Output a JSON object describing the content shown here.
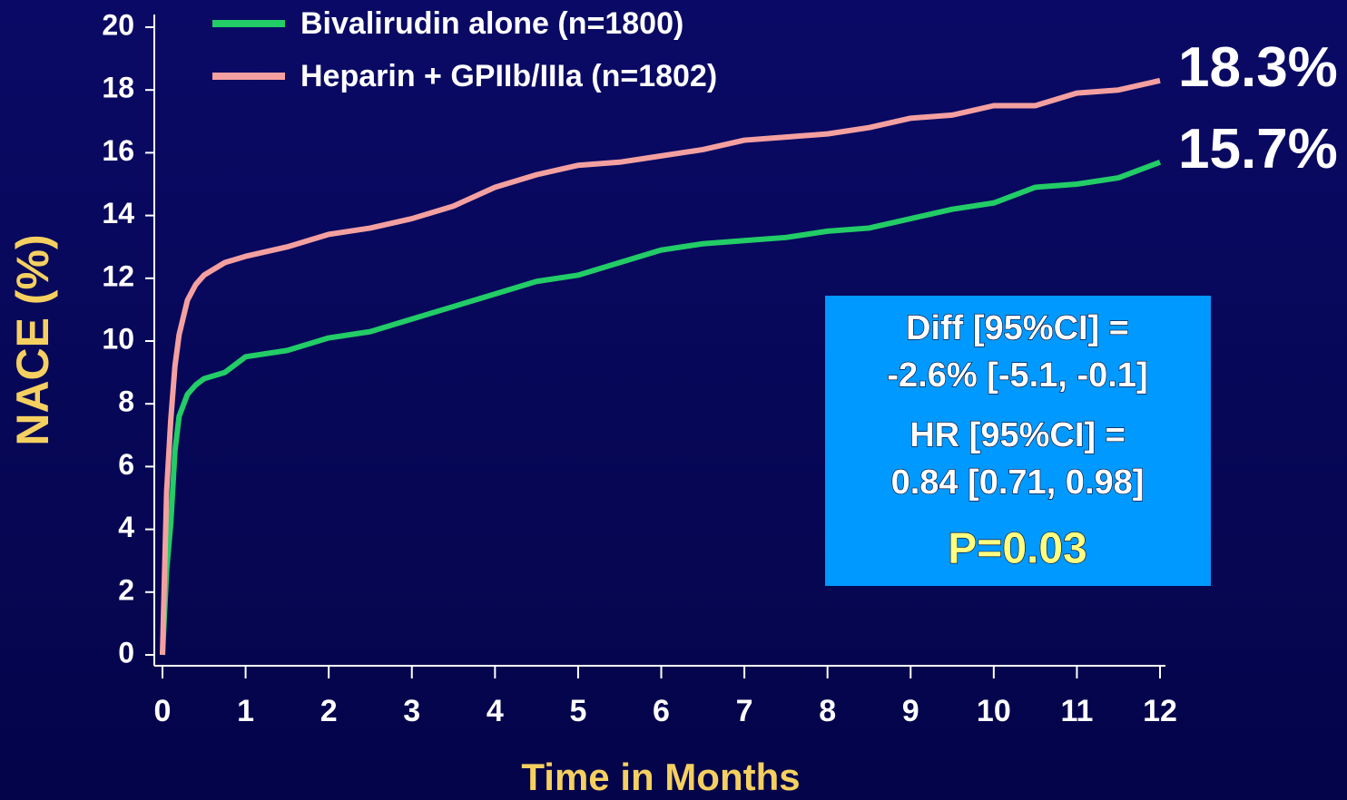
{
  "chart_data": {
    "type": "line",
    "y_label": "NACE (%)",
    "x_label": "Time in Months",
    "x": [
      0,
      0.05,
      0.1,
      0.15,
      0.2,
      0.3,
      0.4,
      0.5,
      0.75,
      1,
      1.5,
      2,
      2.5,
      3,
      3.5,
      4,
      4.5,
      5,
      5.5,
      6,
      6.5,
      7,
      7.5,
      8,
      8.5,
      9,
      9.5,
      10,
      10.5,
      11,
      11.5,
      12
    ],
    "series": [
      {
        "name": "Bivalirudin alone (n=1800)",
        "color": "#22cc66",
        "values": [
          0,
          2.7,
          4.2,
          6.5,
          7.6,
          8.3,
          8.6,
          8.8,
          9.0,
          9.5,
          9.7,
          10.1,
          10.3,
          10.7,
          11.1,
          11.5,
          11.9,
          12.1,
          12.5,
          12.9,
          13.1,
          13.2,
          13.3,
          13.5,
          13.6,
          13.9,
          14.2,
          14.4,
          14.9,
          15.0,
          15.2,
          15.7
        ],
        "value_labels": [
          null,
          null,
          null,
          null,
          null,
          null,
          null,
          null,
          null,
          null,
          null,
          null,
          null,
          null,
          null,
          null,
          null,
          null,
          null,
          null,
          null,
          null,
          null,
          null,
          null,
          null,
          null,
          null,
          null,
          null,
          null,
          "15.7%"
        ]
      },
      {
        "name": "Heparin + GPIIb/IIIa (n=1802)",
        "color": "#f4a0a0",
        "values": [
          0,
          5.2,
          7.5,
          9.2,
          10.2,
          11.3,
          11.8,
          12.1,
          12.5,
          12.7,
          13.0,
          13.4,
          13.6,
          13.9,
          14.3,
          14.9,
          15.3,
          15.6,
          15.7,
          15.9,
          16.1,
          16.4,
          16.5,
          16.6,
          16.8,
          17.1,
          17.2,
          17.5,
          17.5,
          17.9,
          18.0,
          18.3
        ],
        "value_labels": [
          null,
          null,
          null,
          null,
          null,
          null,
          null,
          null,
          null,
          null,
          null,
          null,
          null,
          null,
          null,
          null,
          null,
          null,
          null,
          null,
          null,
          null,
          null,
          null,
          null,
          null,
          null,
          null,
          null,
          null,
          null,
          "18.3%"
        ]
      }
    ],
    "xlim": [
      0,
      12
    ],
    "xticks": [
      0,
      1,
      2,
      3,
      4,
      5,
      6,
      7,
      8,
      9,
      10,
      11,
      12
    ],
    "ylim": [
      0,
      20
    ],
    "yticks": [
      0,
      2,
      4,
      6,
      8,
      10,
      12,
      14,
      16,
      18,
      20
    ],
    "legend": "top-left",
    "annotations": [
      "Diff [95%CI] =",
      "-2.6% [-5.1, -0.1]",
      "HR [95%CI] =",
      "0.84 [0.71, 0.98]",
      "P=0.03"
    ]
  }
}
